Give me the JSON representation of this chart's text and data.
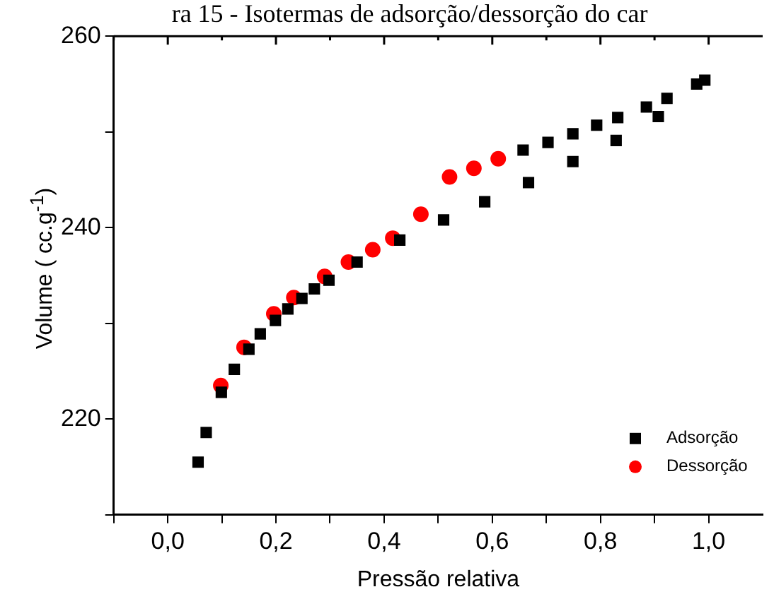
{
  "chart_data": {
    "type": "scatter",
    "title": "ra 15 - Isotermas de adsorção/dessorção do car",
    "xlabel": "Pressão relativa",
    "ylabel": "Volume ( cc.g$^{-1}$)",
    "xlim": [
      -0.1,
      1.1
    ],
    "ylim": [
      210,
      260
    ],
    "xticks": [
      {
        "value": -0.1,
        "label": null
      },
      {
        "value": 0,
        "label": "0,0"
      },
      {
        "value": 0.1,
        "label": null
      },
      {
        "value": 0.2,
        "label": "0,2"
      },
      {
        "value": 0.3,
        "label": null
      },
      {
        "value": 0.4,
        "label": "0,4"
      },
      {
        "value": 0.5,
        "label": null
      },
      {
        "value": 0.6,
        "label": "0,6"
      },
      {
        "value": 0.7,
        "label": null
      },
      {
        "value": 0.8,
        "label": "0,8"
      },
      {
        "value": 0.9,
        "label": null
      },
      {
        "value": 1.0,
        "label": "1,0"
      }
    ],
    "yticks": [
      {
        "value": 210,
        "label": null
      },
      220,
      {
        "value": 230,
        "label": null
      },
      240,
      {
        "value": 250,
        "label": null
      },
      260
    ],
    "grid": false,
    "legend": "bottom right",
    "series": [
      {
        "name": "Adsorção",
        "color": "#000000",
        "marker": "square",
        "x": [
          0.056,
          0.071,
          0.099,
          0.123,
          0.15,
          0.171,
          0.199,
          0.222,
          0.248,
          0.271,
          0.298,
          0.35,
          0.429,
          0.51,
          0.586,
          0.667,
          0.657,
          0.703,
          0.749,
          0.749,
          0.793,
          0.829,
          0.832,
          0.885,
          0.907,
          0.923,
          0.978,
          0.993
        ],
        "values": [
          215.5,
          218.6,
          222.8,
          225.2,
          227.3,
          228.9,
          230.3,
          231.5,
          232.6,
          233.6,
          234.5,
          236.4,
          238.7,
          240.8,
          242.7,
          244.7,
          248.1,
          248.9,
          246.9,
          249.8,
          250.7,
          249.1,
          251.5,
          252.6,
          251.6,
          253.5,
          255.0,
          255.4
        ]
      },
      {
        "name": "Dessorção",
        "color": "#ff0000",
        "marker": "circle",
        "x": [
          0.098,
          0.141,
          0.196,
          0.233,
          0.29,
          0.334,
          0.379,
          0.416,
          0.468,
          0.521,
          0.566,
          0.611
        ],
        "values": [
          223.5,
          227.5,
          231.0,
          232.7,
          234.9,
          236.4,
          237.7,
          238.9,
          241.4,
          245.3,
          246.2,
          247.2
        ]
      }
    ]
  }
}
